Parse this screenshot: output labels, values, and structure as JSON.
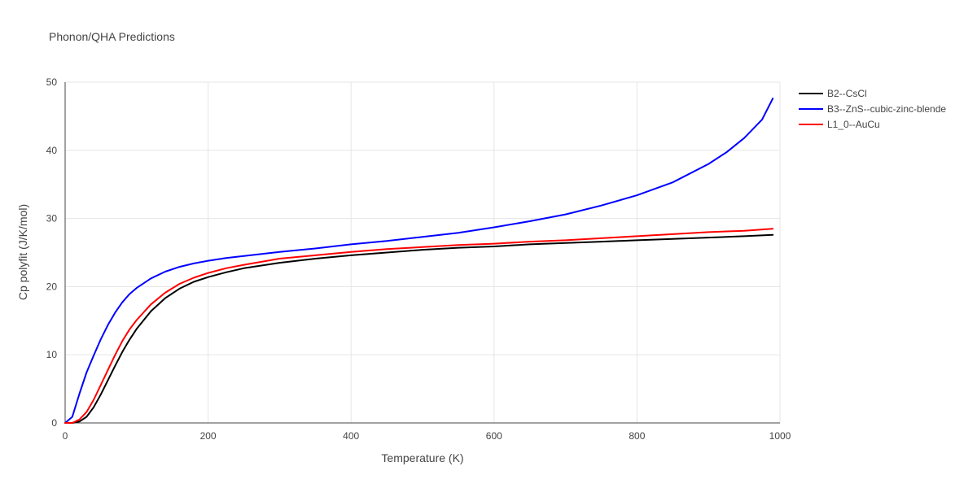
{
  "chart_data": {
    "type": "line",
    "title": "Phonon/QHA Predictions",
    "xlabel": "Temperature (K)",
    "ylabel": "Cp polyfit (J/K/mol)",
    "xlim": [
      0,
      1000
    ],
    "ylim": [
      0,
      50
    ],
    "x_ticks": [
      0,
      200,
      400,
      600,
      800,
      1000
    ],
    "y_ticks": [
      0,
      10,
      20,
      30,
      40,
      50
    ],
    "grid": true,
    "legend_position": "top-right",
    "series": [
      {
        "name": "B2--CsCl",
        "color": "#000000",
        "x": [
          0,
          10,
          20,
          30,
          40,
          50,
          60,
          70,
          80,
          90,
          100,
          120,
          140,
          160,
          180,
          200,
          225,
          250,
          300,
          350,
          400,
          450,
          500,
          550,
          600,
          650,
          700,
          750,
          800,
          850,
          900,
          950,
          990
        ],
        "y": [
          0,
          0,
          0.2,
          0.9,
          2.3,
          4.2,
          6.3,
          8.4,
          10.4,
          12.2,
          13.8,
          16.4,
          18.3,
          19.7,
          20.7,
          21.4,
          22.1,
          22.7,
          23.5,
          24.1,
          24.6,
          25.0,
          25.4,
          25.7,
          25.9,
          26.2,
          26.4,
          26.6,
          26.8,
          27.0,
          27.2,
          27.4,
          27.6
        ]
      },
      {
        "name": "B3--ZnS--cubic-zinc-blende",
        "color": "#0000ff",
        "x": [
          0,
          10,
          20,
          30,
          40,
          50,
          60,
          70,
          80,
          90,
          100,
          120,
          140,
          160,
          180,
          200,
          225,
          250,
          300,
          350,
          400,
          450,
          500,
          550,
          600,
          650,
          700,
          750,
          800,
          850,
          900,
          925,
          950,
          975,
          990
        ],
        "y": [
          0,
          0.9,
          4.3,
          7.4,
          9.9,
          12.3,
          14.4,
          16.2,
          17.7,
          18.9,
          19.8,
          21.2,
          22.2,
          22.9,
          23.4,
          23.8,
          24.2,
          24.5,
          25.1,
          25.6,
          26.2,
          26.7,
          27.3,
          27.9,
          28.7,
          29.6,
          30.6,
          31.9,
          33.4,
          35.3,
          38.0,
          39.7,
          41.8,
          44.5,
          47.6
        ]
      },
      {
        "name": "L1_0--AuCu",
        "color": "#ff0000",
        "x": [
          0,
          10,
          20,
          30,
          40,
          50,
          60,
          70,
          80,
          90,
          100,
          120,
          140,
          160,
          180,
          200,
          225,
          250,
          300,
          350,
          400,
          450,
          500,
          550,
          600,
          650,
          700,
          750,
          800,
          850,
          900,
          950,
          990
        ],
        "y": [
          0,
          0,
          0.5,
          1.6,
          3.4,
          5.6,
          7.8,
          10.0,
          12.0,
          13.7,
          15.1,
          17.4,
          19.1,
          20.4,
          21.3,
          22.0,
          22.7,
          23.2,
          24.1,
          24.6,
          25.1,
          25.5,
          25.8,
          26.1,
          26.3,
          26.6,
          26.8,
          27.1,
          27.4,
          27.7,
          28.0,
          28.2,
          28.5
        ]
      }
    ]
  }
}
